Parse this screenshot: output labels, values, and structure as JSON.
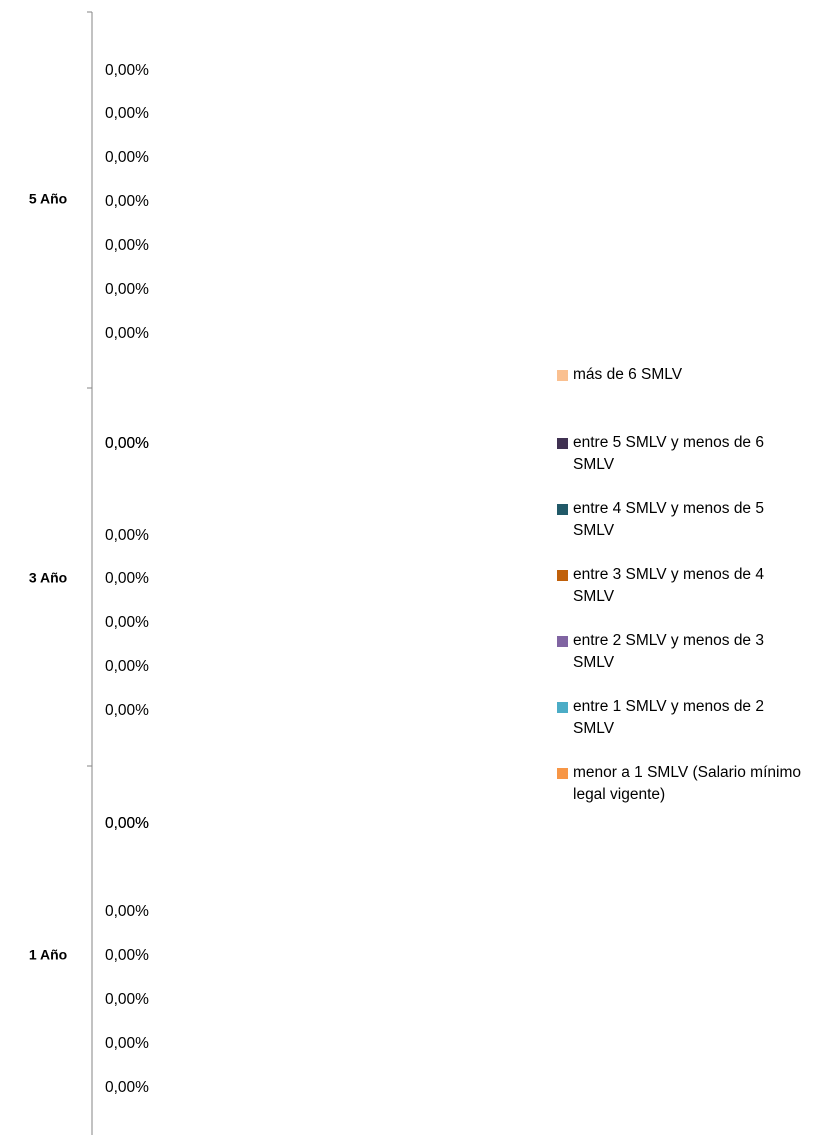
{
  "chart_data": {
    "type": "bar",
    "orientation": "horizontal",
    "stacked": true,
    "categories": [
      "1 Año",
      "3 Año",
      "5 Año"
    ],
    "series": [
      {
        "name": "más de 6 SMLV",
        "color": "#fac090",
        "values": [
          0,
          0,
          0
        ],
        "value_labels": [
          "0,00%",
          "0,00%",
          "0,00%"
        ]
      },
      {
        "name": "entre 5 SMLV y menos de 6 SMLV",
        "color": "#403152",
        "values": [
          0,
          0,
          0
        ],
        "value_labels": [
          "0,00%",
          "0,00%",
          "0,00%"
        ]
      },
      {
        "name": "entre 4 SMLV y menos de 5 SMLV",
        "color": "#215968",
        "values": [
          0,
          0,
          0
        ],
        "value_labels": [
          "0,00%",
          "0,00%",
          "0,00%"
        ]
      },
      {
        "name": "entre 3 SMLV y menos de 4 SMLV",
        "color": "#c0600a",
        "values": [
          0,
          0,
          0
        ],
        "value_labels": [
          "0,00%",
          "0,00%",
          "0,00%"
        ]
      },
      {
        "name": "entre 2 SMLV y menos de 3 SMLV",
        "color": "#8064a2",
        "values": [
          0,
          0,
          0
        ],
        "value_labels": [
          "0,00%",
          "0,00%",
          "0,00%"
        ]
      },
      {
        "name": "entre 1 SMLV y menos de 2 SMLV",
        "color": "#4bacc6",
        "values": [
          0,
          0,
          0
        ],
        "value_labels": [
          "0,00%",
          "0,00%",
          "0,00%"
        ]
      },
      {
        "name": "menor a 1 SMLV (Salario mínimo legal vigente)",
        "color": "#f79646",
        "values": [
          0,
          0,
          0
        ],
        "value_labels": [
          "0,00%",
          "0,00%",
          "0,00%"
        ]
      }
    ]
  }
}
